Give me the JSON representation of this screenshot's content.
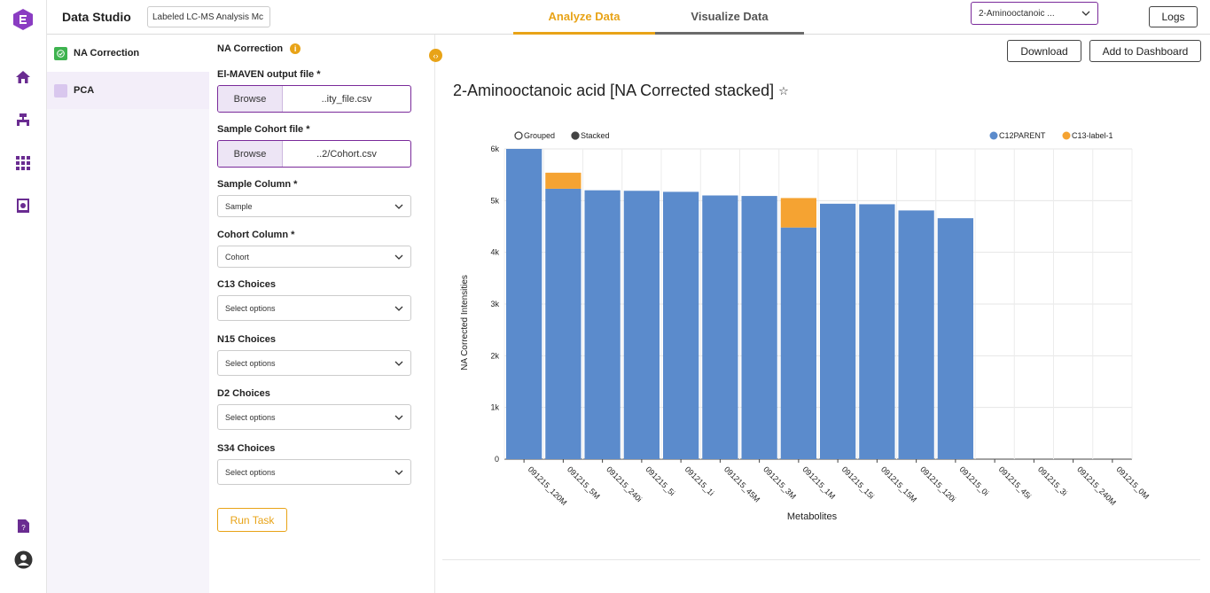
{
  "header": {
    "app_title": "Data Studio",
    "project_name": "Labeled LC-MS Analysis Mc",
    "tabs": [
      {
        "label": "Analyze Data"
      },
      {
        "label": "Visualize Data"
      }
    ],
    "metabolite_select": "2-Aminooctanoic ...",
    "logs_label": "Logs"
  },
  "rail": {
    "icons": [
      "logo-icon",
      "home-icon",
      "workflow-icon",
      "apps-grid-icon",
      "dataset-icon",
      "help-doc-icon",
      "user-account-icon"
    ]
  },
  "tasks": {
    "items": [
      {
        "label": "NA Correction",
        "checked": true
      },
      {
        "label": "PCA",
        "checked": false
      }
    ]
  },
  "form": {
    "title": "NA Correction",
    "maven_label": "El-MAVEN output file *",
    "maven_browse": "Browse",
    "maven_file": "..ity_file.csv",
    "cohort_file_label": "Sample Cohort file *",
    "cohort_browse": "Browse",
    "cohort_file": "..2/Cohort.csv",
    "sample_col_label": "Sample Column *",
    "sample_col_value": "Sample",
    "cohort_col_label": "Cohort Column *",
    "cohort_col_value": "Cohort",
    "c13_label": "C13 Choices",
    "c13_placeholder": "Select options",
    "n15_label": "N15 Choices",
    "n15_placeholder": "Select options",
    "d2_label": "D2 Choices",
    "d2_placeholder": "Select options",
    "s34_label": "S34 Choices",
    "s34_placeholder": "Select options",
    "run_label": "Run Task"
  },
  "main": {
    "download_label": "Download",
    "add_dashboard_label": "Add to Dashboard",
    "chart_title": "2-Aminooctanoic acid [NA Corrected stacked]"
  },
  "colors": {
    "accent": "#e8a317",
    "purple": "#7a2a9a",
    "series1": "#5b8bcc",
    "series2": "#f5a332"
  },
  "chart_data": {
    "type": "bar",
    "stacked": true,
    "mode_options": [
      {
        "label": "Grouped",
        "selected": false
      },
      {
        "label": "Stacked",
        "selected": true
      }
    ],
    "categories": [
      "091215_120M",
      "091215_5M",
      "091215_240i",
      "091215_5i",
      "091215_1i",
      "091215_45M",
      "091215_3M",
      "091215_1M",
      "091215_15i",
      "091215_15M",
      "091215_120i",
      "091215_0i",
      "091215_45i",
      "091215_3i",
      "091215_240M",
      "091215_0M"
    ],
    "series": [
      {
        "name": "C12PARENT",
        "color": "#5b8bcc",
        "values": [
          6000,
          5230,
          5200,
          5190,
          5170,
          5100,
          5090,
          4480,
          4940,
          4930,
          4810,
          4660,
          0,
          0,
          0,
          0
        ]
      },
      {
        "name": "C13-label-1",
        "color": "#f5a332",
        "values": [
          0,
          310,
          0,
          0,
          0,
          0,
          0,
          570,
          0,
          0,
          0,
          0,
          0,
          0,
          0,
          0
        ]
      }
    ],
    "xlabel": "Metabolites",
    "ylabel": "NA Corrected Intensities",
    "ylim": [
      0,
      6000
    ],
    "yticks": [
      0,
      1000,
      2000,
      3000,
      4000,
      5000,
      6000
    ],
    "ytick_labels": [
      "0",
      "1k",
      "2k",
      "3k",
      "4k",
      "5k",
      "6k"
    ],
    "grid": true,
    "legend_position": "top-right"
  }
}
